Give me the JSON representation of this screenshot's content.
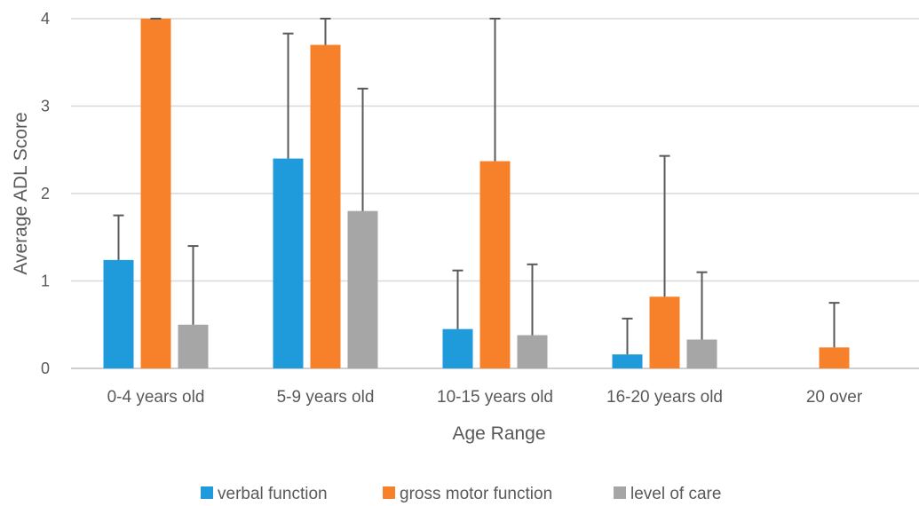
{
  "chart_data": {
    "type": "bar",
    "title": "",
    "xlabel": "Age Range",
    "ylabel": "Average ADL Score",
    "ylim": [
      0,
      4
    ],
    "yticks": [
      0,
      1,
      2,
      3,
      4
    ],
    "grid": true,
    "legend_position": "bottom",
    "categories": [
      "0-4 years old",
      "5-9 years old",
      "10-15 years old",
      "16-20 years old",
      "20 over"
    ],
    "series": [
      {
        "name": "verbal function",
        "color": "#1f9bdc",
        "values": [
          1.24,
          2.4,
          0.45,
          0.16,
          null
        ],
        "error_upper": [
          1.75,
          3.83,
          1.12,
          0.57,
          null
        ]
      },
      {
        "name": "gross motor function",
        "color": "#f7812a",
        "values": [
          4.0,
          3.7,
          2.37,
          0.82,
          0.24
        ],
        "error_upper": [
          4.0,
          4.0,
          4.0,
          2.43,
          0.75
        ]
      },
      {
        "name": "level of care",
        "color": "#a6a6a6",
        "values": [
          0.5,
          1.8,
          0.38,
          0.33,
          null
        ],
        "error_upper": [
          1.4,
          3.2,
          1.19,
          1.1,
          null
        ]
      }
    ]
  }
}
